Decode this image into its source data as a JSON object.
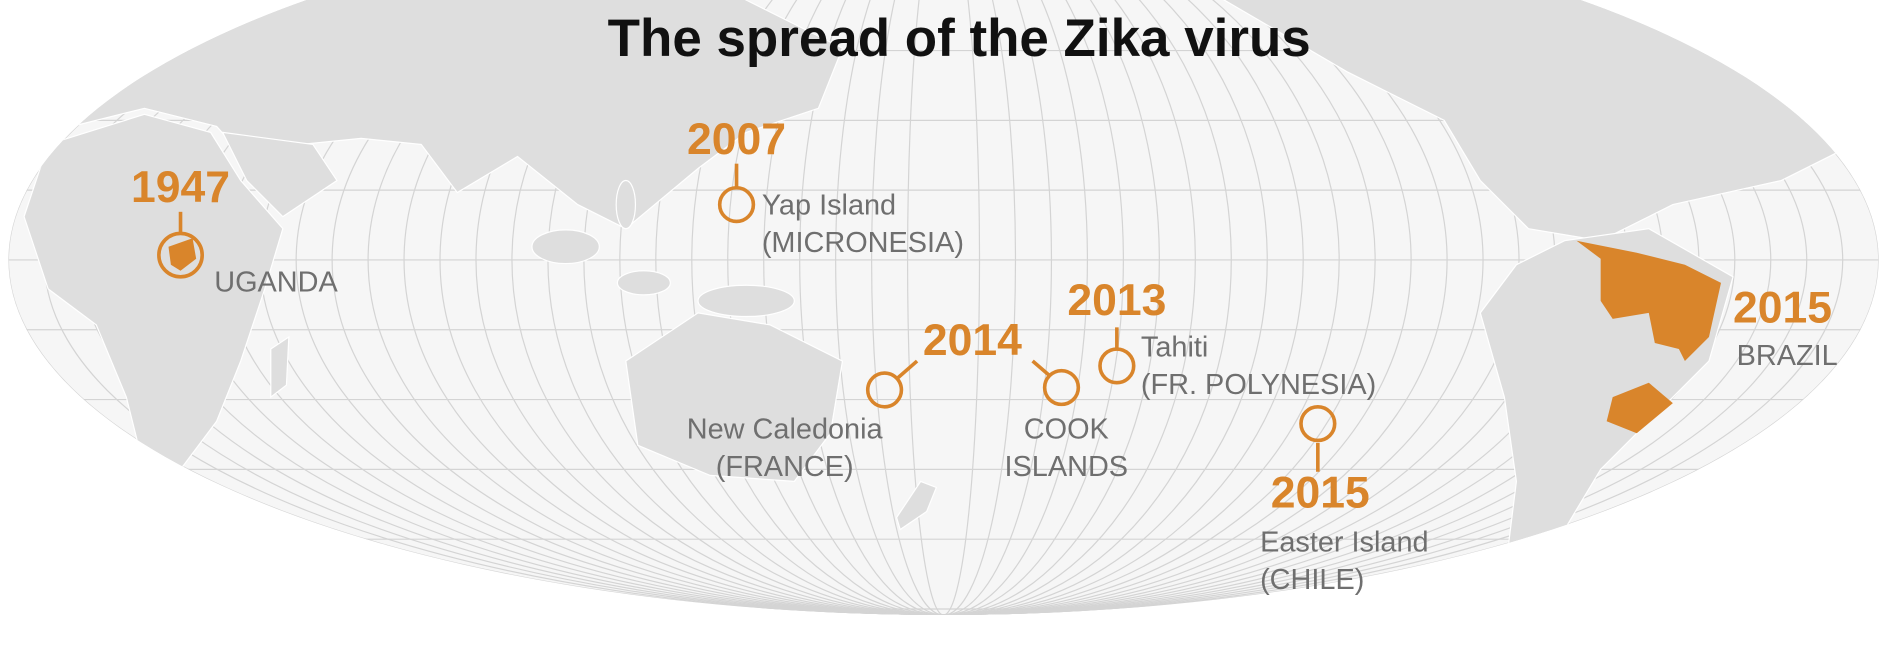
{
  "title": "The spread of the Zika virus",
  "events": [
    {
      "year": 1947,
      "places": [
        {
          "lines": [
            "UGANDA"
          ]
        }
      ]
    },
    {
      "year": 2007,
      "places": [
        {
          "lines": [
            "Yap Island",
            "(MICRONESIA)"
          ]
        }
      ]
    },
    {
      "year": 2014,
      "places": [
        {
          "lines": [
            "New Caledonia",
            "(FRANCE)"
          ]
        },
        {
          "lines": [
            "COOK",
            "ISLANDS"
          ]
        }
      ]
    },
    {
      "year": 2013,
      "places": [
        {
          "lines": [
            "Tahiti",
            "(FR. POLYNESIA)"
          ]
        }
      ]
    },
    {
      "year": 2015,
      "places": [
        {
          "lines": [
            "Easter Island",
            "(CHILE)"
          ]
        }
      ]
    },
    {
      "year": 2015,
      "places": [
        {
          "lines": [
            "BRAZIL"
          ]
        }
      ]
    }
  ]
}
